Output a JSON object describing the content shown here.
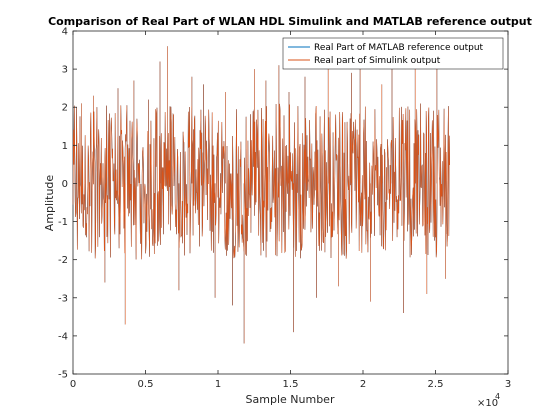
{
  "chart_data": {
    "type": "line",
    "title": "Comparison of Real Part of WLAN HDL Simulink and MATLAB reference output",
    "xlabel": "Sample Number",
    "ylabel": "Amplitude",
    "x_exponent_label": "×10",
    "x_exponent_power": "4",
    "xlim": [
      0,
      30000
    ],
    "ylim": [
      -5,
      4
    ],
    "x_ticks": [
      0,
      5000,
      10000,
      15000,
      20000,
      25000,
      30000
    ],
    "x_tick_labels": [
      "0",
      "0.5",
      "1",
      "1.5",
      "2",
      "2.5",
      "3"
    ],
    "y_ticks": [
      -5,
      -4,
      -3,
      -2,
      -1,
      0,
      1,
      2,
      3,
      4
    ],
    "y_tick_labels": [
      "-5",
      "-4",
      "-3",
      "-2",
      "-1",
      "0",
      "1",
      "2",
      "3",
      "4"
    ],
    "grid": false,
    "legend_position": "top-right",
    "num_samples": 26000,
    "envelope_ranges": [
      [
        0,
        26000,
        -1.5,
        1.6
      ]
    ],
    "spikes": [
      {
        "x": 600,
        "y": 2.1
      },
      {
        "x": 1400,
        "y": 2.3
      },
      {
        "x": 2200,
        "y": -2.6
      },
      {
        "x": 3100,
        "y": 2.5
      },
      {
        "x": 3600,
        "y": -3.7
      },
      {
        "x": 4200,
        "y": 2.7
      },
      {
        "x": 5200,
        "y": 2.2
      },
      {
        "x": 6000,
        "y": 3.2
      },
      {
        "x": 6500,
        "y": 3.6
      },
      {
        "x": 7300,
        "y": -2.8
      },
      {
        "x": 8200,
        "y": 2.8
      },
      {
        "x": 9000,
        "y": 2.6
      },
      {
        "x": 9800,
        "y": -3.0
      },
      {
        "x": 10500,
        "y": 2.4
      },
      {
        "x": 11000,
        "y": -3.2
      },
      {
        "x": 11800,
        "y": -4.2
      },
      {
        "x": 12500,
        "y": 3.0
      },
      {
        "x": 13300,
        "y": 2.7
      },
      {
        "x": 14200,
        "y": 3.1
      },
      {
        "x": 14900,
        "y": 2.4
      },
      {
        "x": 15200,
        "y": -3.9
      },
      {
        "x": 16000,
        "y": 2.8
      },
      {
        "x": 16800,
        "y": -3.0
      },
      {
        "x": 17600,
        "y": 3.6
      },
      {
        "x": 18300,
        "y": -2.7
      },
      {
        "x": 19200,
        "y": 2.9
      },
      {
        "x": 19800,
        "y": 3.5
      },
      {
        "x": 20500,
        "y": -3.1
      },
      {
        "x": 21300,
        "y": 2.6
      },
      {
        "x": 22000,
        "y": 3.2
      },
      {
        "x": 22800,
        "y": -3.4
      },
      {
        "x": 23600,
        "y": 3.1
      },
      {
        "x": 24400,
        "y": -2.9
      },
      {
        "x": 25100,
        "y": 3.3
      },
      {
        "x": 25700,
        "y": -2.5
      }
    ],
    "series": [
      {
        "name": "Real Part of MATLAB reference output",
        "color": "#0072BD"
      },
      {
        "name": "Real part of Simulink output",
        "color": "#D95319"
      }
    ]
  }
}
